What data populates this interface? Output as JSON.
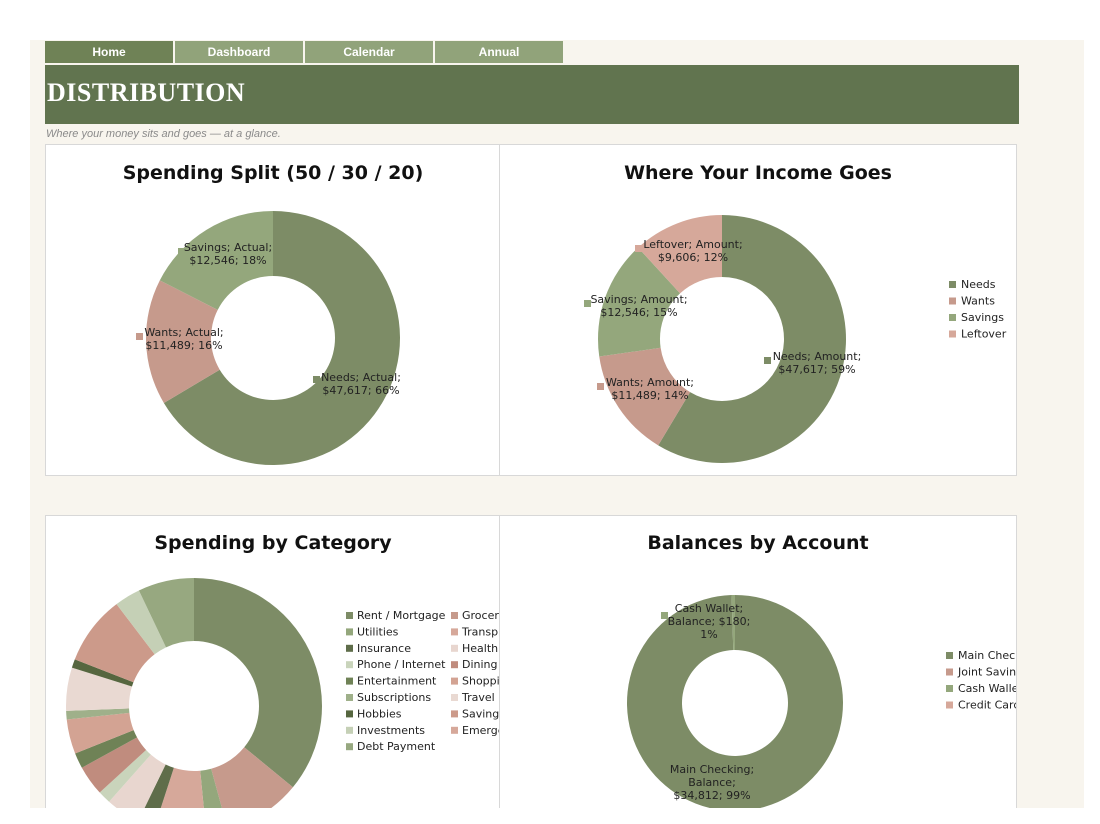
{
  "nav": {
    "items": [
      "Home",
      "Dashboard",
      "Calendar",
      "Annual"
    ]
  },
  "banner": {
    "title": "DISTRIBUTION"
  },
  "subtitle": "Where your money sits and goes — at a glance.",
  "colors": {
    "needs": "#7d8c66",
    "wants": "#c69a8c",
    "savings": "#94a77c",
    "leftover": "#d6a89a",
    "banner": "#61744f",
    "nav": "#91a37a"
  },
  "panels": {
    "split": {
      "title": "Spending Split (50 / 30 / 20)"
    },
    "income": {
      "title": "Where Your Income Goes"
    },
    "category": {
      "title": "Spending by Category"
    },
    "accounts": {
      "title": "Balances by Account"
    }
  },
  "chart_data": [
    {
      "type": "pie",
      "title": "Spending Split (50 / 30 / 20)",
      "slices": [
        {
          "name": "Needs",
          "value": 47617,
          "label": [
            "Needs; Actual;",
            "$47,617; 66%"
          ]
        },
        {
          "name": "Wants",
          "value": 11489,
          "label": [
            "Wants; Actual;",
            "$11,489; 16%"
          ]
        },
        {
          "name": "Savings",
          "value": 12546,
          "label": [
            "Savings; Actual;",
            "$12,546; 18%"
          ]
        }
      ]
    },
    {
      "type": "pie",
      "title": "Where Your Income Goes",
      "legend": [
        "Needs",
        "Wants",
        "Savings",
        "Leftover"
      ],
      "legend_position": "right",
      "slices": [
        {
          "name": "Needs",
          "value": 47617,
          "label": [
            "Needs; Amount;",
            "$47,617; 59%"
          ]
        },
        {
          "name": "Wants",
          "value": 11489,
          "label": [
            "Wants; Amount;",
            "$11,489; 14%"
          ]
        },
        {
          "name": "Savings",
          "value": 12546,
          "label": [
            "Savings; Amount;",
            "$12,546; 15%"
          ]
        },
        {
          "name": "Leftover",
          "value": 9606,
          "label": [
            "Leftover; Amount;",
            "$9,606; 12%"
          ]
        }
      ]
    },
    {
      "type": "pie",
      "title": "Spending by Category",
      "legend_position": "right",
      "legend_col1": [
        "Rent / Mortgage",
        "Utilities",
        "Insurance",
        "Phone / Internet",
        "Entertainment",
        "Subscriptions",
        "Hobbies",
        "Investments",
        "Debt Payment"
      ],
      "legend_col2": [
        "Groceri",
        "Transp",
        "Health",
        "Dining",
        "Shoppi",
        "Travel",
        "Savings",
        "Emerge"
      ],
      "slices": [
        {
          "name": "Rent / Mortgage",
          "value": 33
        },
        {
          "name": "Groceries",
          "value": 9
        },
        {
          "name": "Utilities",
          "value": 2.5
        },
        {
          "name": "Transportation",
          "value": 6
        },
        {
          "name": "Insurance",
          "value": 2
        },
        {
          "name": "Healthcare",
          "value": 4
        },
        {
          "name": "Phone / Internet",
          "value": 1.5
        },
        {
          "name": "Dining",
          "value": 3.5
        },
        {
          "name": "Entertainment",
          "value": 1.8
        },
        {
          "name": "Shopping",
          "value": 4
        },
        {
          "name": "Subscriptions",
          "value": 1
        },
        {
          "name": "Travel",
          "value": 5
        },
        {
          "name": "Hobbies",
          "value": 1
        },
        {
          "name": "Savings",
          "value": 8
        },
        {
          "name": "Investments",
          "value": 3
        },
        {
          "name": "Debt Payment",
          "value": 6.5
        }
      ]
    },
    {
      "type": "pie",
      "title": "Balances by Account",
      "legend": [
        "Main Checking",
        "Joint Savings",
        "Cash Wallet",
        "Credit Card"
      ],
      "legend_position": "right",
      "slices": [
        {
          "name": "Main Checking",
          "value": 34812,
          "label": [
            "Main Checking;",
            "Balance;",
            "$34,812; 99%"
          ]
        },
        {
          "name": "Cash Wallet",
          "value": 180,
          "label": [
            "Cash Wallet;",
            "Balance; $180;",
            "1%"
          ]
        }
      ]
    }
  ]
}
